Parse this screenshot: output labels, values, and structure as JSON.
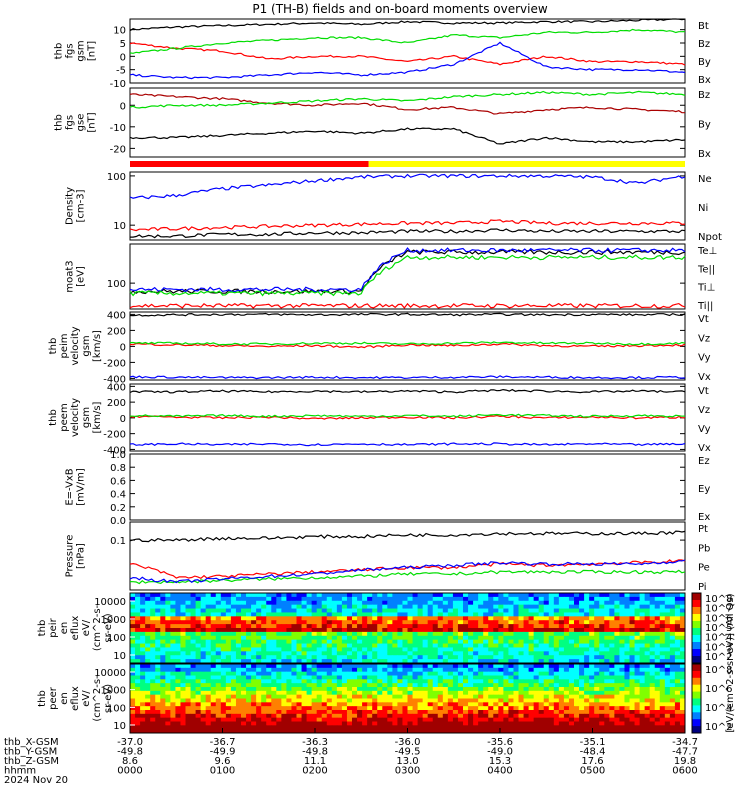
{
  "title": "P1 (TH-B) fields and on-board moments overview",
  "colors": {
    "black": "#000000",
    "red": "#ff0000",
    "green": "#00dd00",
    "blue": "#0000ff",
    "darkred": "#aa0000"
  },
  "chart_data": [
    {
      "id": "fgs_gsm",
      "type": "line",
      "ylabel": [
        "thb",
        "fgs",
        "gsm",
        "[nT]"
      ],
      "ylim": [
        -10,
        14
      ],
      "yticks": [
        "10",
        "5",
        "0",
        "-5",
        "-10"
      ],
      "series": [
        {
          "name": "Bt",
          "color": "black",
          "values": [
            10,
            11,
            11.5,
            12,
            12.5,
            12,
            13,
            12.5,
            12.5,
            13,
            13,
            13.5,
            14
          ]
        },
        {
          "name": "Bz",
          "color": "red",
          "values": [
            5,
            3,
            2,
            -1,
            0,
            0,
            -2,
            0,
            -3,
            0,
            -2,
            -2,
            -3
          ]
        },
        {
          "name": "By",
          "color": "green",
          "values": [
            1,
            3,
            5,
            6,
            7,
            7,
            5,
            8,
            7,
            9,
            9,
            10,
            9
          ]
        },
        {
          "name": "Bx",
          "color": "blue",
          "values": [
            -7,
            -8,
            -8,
            -7,
            -6,
            -7,
            -6,
            -3,
            5,
            -4,
            -5,
            -5,
            -6
          ]
        }
      ]
    },
    {
      "id": "fgs_gse",
      "type": "line",
      "ylabel": [
        "thb",
        "fgs",
        "gse",
        "[nT]"
      ],
      "ylim": [
        -24,
        8
      ],
      "yticks": [
        "0",
        "-10",
        "-20"
      ],
      "series": [
        {
          "name": "Bz",
          "color": "darkred",
          "values": [
            5,
            4,
            3,
            1,
            0,
            1,
            -2,
            -1,
            -4,
            -2,
            -1,
            -2,
            -3
          ]
        },
        {
          "name": "By",
          "color": "green",
          "values": [
            -1,
            0,
            0,
            1,
            2,
            3,
            2,
            4,
            5,
            6,
            5,
            6,
            5
          ]
        },
        {
          "name": "Bx",
          "color": "black",
          "values": [
            -15,
            -15,
            -14,
            -13,
            -12,
            -13,
            -11,
            -11,
            -18,
            -15,
            -17,
            -17,
            -16
          ]
        }
      ]
    },
    {
      "id": "density",
      "type": "line",
      "ylabel": [
        "Density",
        "[cm-3]"
      ],
      "ylog": true,
      "ylim": [
        5,
        120
      ],
      "yticks": [
        "100",
        "10"
      ],
      "series": [
        {
          "name": "Ne",
          "color": "red",
          "values": [
            8,
            8.5,
            9,
            9.5,
            10,
            10.5,
            11,
            11,
            12,
            11,
            11,
            11,
            11
          ]
        },
        {
          "name": "Ni",
          "color": "black",
          "values": [
            6,
            6,
            6.5,
            6.5,
            7,
            7,
            7.5,
            7.5,
            8,
            7.5,
            7.5,
            7.5,
            7.5
          ]
        },
        {
          "name": "Npot",
          "color": "blue",
          "values": [
            35,
            40,
            55,
            65,
            80,
            95,
            100,
            100,
            100,
            100,
            95,
            70,
            100
          ]
        }
      ]
    },
    {
      "id": "temperature",
      "type": "line",
      "ylabel": [
        "moat3",
        "[eV]"
      ],
      "ylog": true,
      "ylim": [
        40,
        400
      ],
      "yticks": [
        "100"
      ],
      "series": [
        {
          "name": "Te⊥",
          "color": "red",
          "values": [
            45,
            45,
            45,
            45,
            45,
            45,
            45,
            45,
            45,
            45,
            45,
            45,
            45
          ]
        },
        {
          "name": "Te||",
          "color": "black",
          "values": [
            75,
            75,
            75,
            75,
            75,
            75,
            300,
            300,
            300,
            300,
            300,
            300,
            300
          ]
        },
        {
          "name": "Ti⊥",
          "color": "blue",
          "values": [
            80,
            80,
            80,
            80,
            80,
            80,
            320,
            320,
            320,
            320,
            320,
            320,
            320
          ]
        },
        {
          "name": "Ti||",
          "color": "green",
          "values": [
            70,
            70,
            70,
            70,
            70,
            70,
            250,
            250,
            250,
            250,
            250,
            250,
            250
          ]
        }
      ]
    },
    {
      "id": "peim_velocity",
      "type": "line",
      "ylabel": [
        "thb",
        "peim",
        "velocity",
        "gsm",
        "[km/s]"
      ],
      "ylim": [
        -420,
        430
      ],
      "yticks": [
        "400",
        "200",
        "0",
        "-200",
        "-400"
      ],
      "series": [
        {
          "name": "Vt",
          "color": "black",
          "values": [
            390,
            395,
            400,
            400,
            395,
            400,
            400,
            395,
            400,
            395,
            400,
            395,
            400
          ]
        },
        {
          "name": "Vz",
          "color": "red",
          "values": [
            30,
            20,
            10,
            0,
            10,
            -10,
            20,
            10,
            30,
            10,
            0,
            10,
            20
          ]
        },
        {
          "name": "Vy",
          "color": "green",
          "values": [
            40,
            40,
            30,
            30,
            40,
            40,
            30,
            40,
            50,
            40,
            40,
            30,
            40
          ]
        },
        {
          "name": "Vx",
          "color": "blue",
          "values": [
            -380,
            -385,
            -390,
            -390,
            -385,
            -390,
            -390,
            -385,
            -380,
            -385,
            -390,
            -390,
            -385
          ]
        }
      ]
    },
    {
      "id": "peem_velocity",
      "type": "line",
      "ylabel": [
        "thb",
        "peem",
        "velocity",
        "gsm",
        "[km/s]"
      ],
      "ylim": [
        -420,
        430
      ],
      "yticks": [
        "400",
        "200",
        "0",
        "-200",
        "-400"
      ],
      "series": [
        {
          "name": "Vt",
          "color": "black",
          "values": [
            330,
            330,
            340,
            330,
            340,
            330,
            340,
            330,
            350,
            340,
            330,
            340,
            330
          ]
        },
        {
          "name": "Vz",
          "color": "red",
          "values": [
            20,
            10,
            0,
            10,
            -10,
            0,
            10,
            0,
            20,
            0,
            10,
            0,
            10
          ]
        },
        {
          "name": "Vy",
          "color": "green",
          "values": [
            30,
            20,
            30,
            20,
            30,
            20,
            30,
            20,
            40,
            30,
            20,
            30,
            20
          ]
        },
        {
          "name": "Vx",
          "color": "blue",
          "values": [
            -340,
            -330,
            -340,
            -330,
            -340,
            -330,
            -340,
            -330,
            -330,
            -340,
            -330,
            -340,
            -330
          ]
        }
      ]
    },
    {
      "id": "efield",
      "type": "line",
      "ylabel": [
        "E=-VxB",
        "[mV/m]"
      ],
      "ylim": [
        0,
        1
      ],
      "yticks": [
        "1.0",
        "0.8",
        "0.6",
        "0.4",
        "0.2",
        "0.0"
      ],
      "series": [
        {
          "name": "Ez",
          "color": "red",
          "values": []
        },
        {
          "name": "Ey",
          "color": "green",
          "values": []
        },
        {
          "name": "Ex",
          "color": "blue",
          "values": []
        }
      ]
    },
    {
      "id": "pressure",
      "type": "line",
      "ylabel": [
        "Pressure",
        "[nPa]"
      ],
      "ylog": true,
      "ylim": [
        0.008,
        0.25
      ],
      "yticks": [
        "0.1"
      ],
      "series": [
        {
          "name": "Pt",
          "color": "black",
          "values": [
            0.1,
            0.1,
            0.11,
            0.11,
            0.12,
            0.12,
            0.13,
            0.13,
            0.14,
            0.14,
            0.14,
            0.14,
            0.15
          ]
        },
        {
          "name": "Pb",
          "color": "red",
          "values": [
            0.03,
            0.015,
            0.016,
            0.018,
            0.02,
            0.022,
            0.025,
            0.025,
            0.03,
            0.028,
            0.03,
            0.032,
            0.035
          ]
        },
        {
          "name": "Pe",
          "color": "green",
          "values": [
            0.012,
            0.012,
            0.013,
            0.014,
            0.015,
            0.016,
            0.018,
            0.018,
            0.02,
            0.02,
            0.02,
            0.02,
            0.02
          ]
        },
        {
          "name": "Pi",
          "color": "blue",
          "values": [
            0.015,
            0.012,
            0.014,
            0.016,
            0.018,
            0.022,
            0.025,
            0.028,
            0.032,
            0.03,
            0.03,
            0.03,
            0.035
          ]
        }
      ]
    },
    {
      "id": "peir_spectrogram",
      "type": "heatmap",
      "ylabel": [
        "thb",
        "peir",
        "en",
        "eflux",
        "eV/",
        "(cm^2-s-",
        "sr-eV)"
      ],
      "yticks": [
        "10000",
        "1000",
        "100",
        "10"
      ],
      "colorbar": {
        "label": "[eV/(cm^2-s-sr-eV)] (All Qs)",
        "ticks": [
          "10^8",
          "10^7",
          "10^6",
          "10^5",
          "10^4",
          "10^3",
          "10^2"
        ]
      }
    },
    {
      "id": "peer_spectrogram",
      "type": "heatmap",
      "ylabel": [
        "thb",
        "peer",
        "en",
        "eflux",
        "eV/",
        "(cm^2-s-",
        "sr-eV)"
      ],
      "yticks": [
        "10000",
        "1000",
        "100",
        "10"
      ],
      "colorbar": {
        "ticks": [
          "10^8",
          "10^6",
          "10^4",
          "10^2"
        ]
      }
    }
  ],
  "xaxis": {
    "row_labels": [
      "thb_X-GSM",
      "thb_Y-GSM",
      "thb_Z-GSM",
      "hhmm",
      "2024 Nov 20"
    ],
    "columns": [
      [
        "-37.0",
        "-49.8",
        "8.6",
        "0000"
      ],
      [
        "-36.7",
        "-49.9",
        "9.6",
        "0100"
      ],
      [
        "-36.3",
        "-49.8",
        "11.1",
        "0200"
      ],
      [
        "-36.0",
        "-49.5",
        "13.0",
        "0300"
      ],
      [
        "-35.6",
        "-49.0",
        "15.3",
        "0400"
      ],
      [
        "-35.1",
        "-48.4",
        "17.6",
        "0500"
      ],
      [
        "-34.7",
        "-47.7",
        "19.8",
        "0600"
      ]
    ]
  },
  "mode_bar": {
    "colors": [
      "#ff0000",
      "#ffff00"
    ],
    "split_fraction": 0.43
  }
}
